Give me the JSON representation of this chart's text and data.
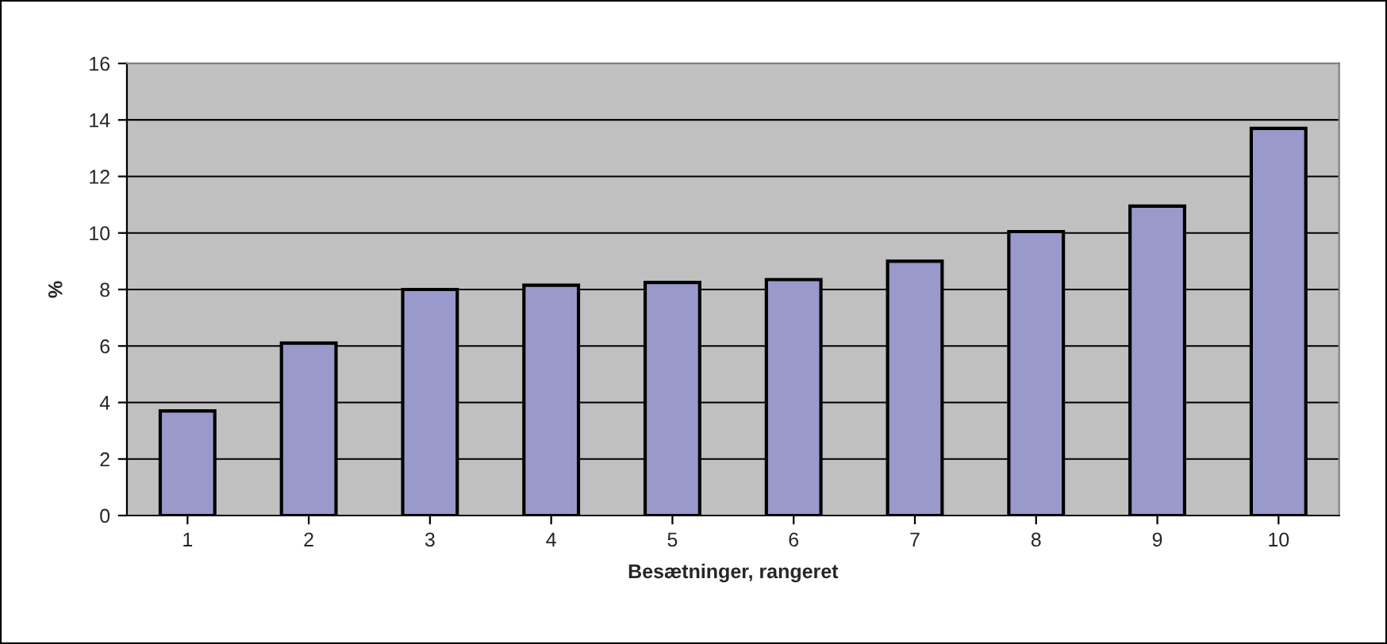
{
  "chart_data": {
    "type": "bar",
    "xlabel": "Besætninger, rangeret",
    "ylabel": "%",
    "categories": [
      "1",
      "2",
      "3",
      "4",
      "5",
      "6",
      "7",
      "8",
      "9",
      "10"
    ],
    "values": [
      3.7,
      6.1,
      8.0,
      8.15,
      8.25,
      8.35,
      9.0,
      10.05,
      10.95,
      13.7
    ],
    "color": "#9999cc",
    "ylim": [
      0,
      16
    ],
    "yticks": [
      0,
      2,
      4,
      6,
      8,
      10,
      12,
      14,
      16
    ],
    "grid": "y",
    "legend": false
  }
}
